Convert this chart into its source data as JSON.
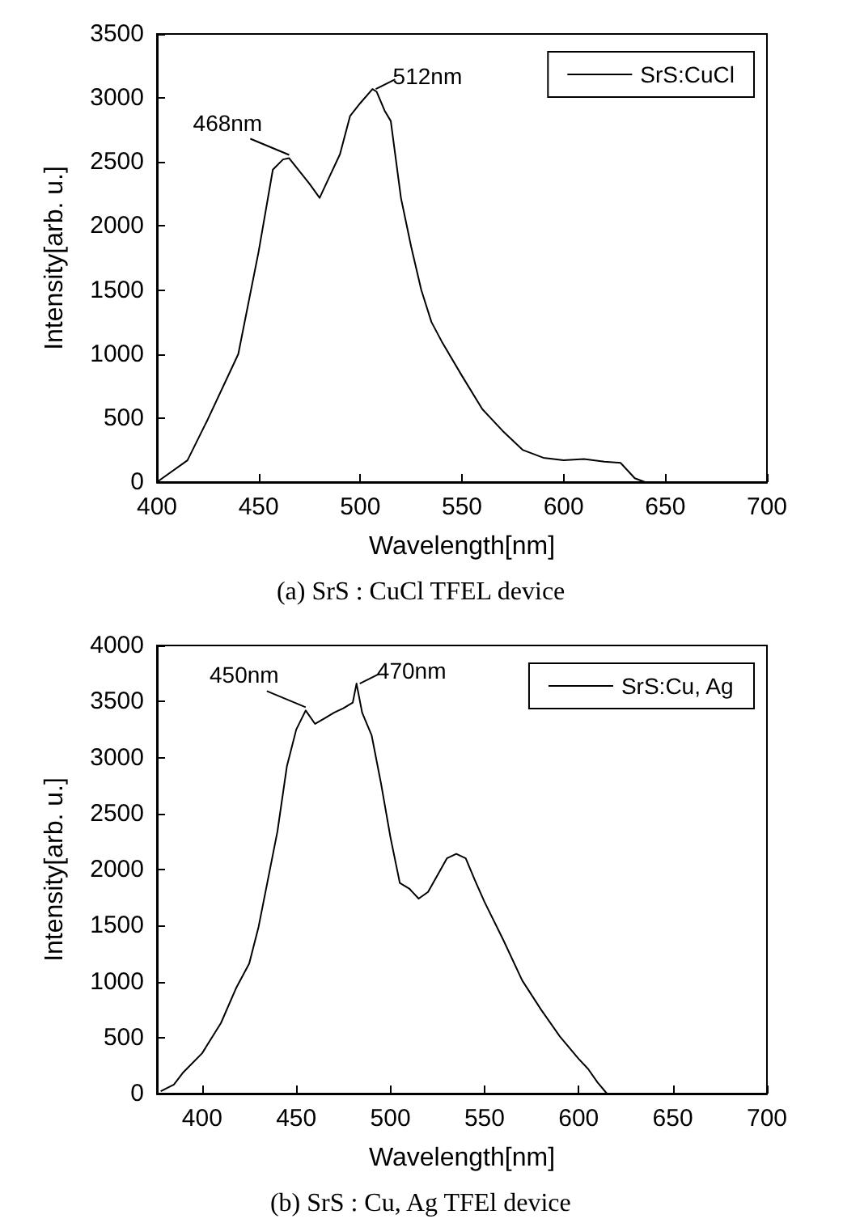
{
  "chart_data": [
    {
      "type": "line",
      "xlabel": "Wavelength[nm]",
      "ylabel": "Intensity[arb. u.]",
      "xlim": [
        400,
        700
      ],
      "xticks": [
        400,
        450,
        500,
        550,
        600,
        650,
        700
      ],
      "ylim": [
        0,
        3500
      ],
      "yticks": [
        0,
        500,
        1000,
        1500,
        2000,
        2500,
        3000,
        3500
      ],
      "grid": false,
      "legend": "top right",
      "marker": "none",
      "line_style": "solid",
      "series": [
        {
          "name": "SrS:CuCl",
          "color": "#000000",
          "x": [
            400,
            415,
            425,
            440,
            450,
            457,
            462,
            465,
            475,
            480,
            485,
            490,
            495,
            500,
            506,
            508,
            512,
            515,
            520,
            525,
            530,
            535,
            540,
            550,
            560,
            570,
            580,
            590,
            600,
            610,
            620,
            628,
            635,
            640,
            650,
            700
          ],
          "values": [
            0,
            170,
            490,
            1000,
            1800,
            2440,
            2520,
            2530,
            2330,
            2220,
            2390,
            2560,
            2860,
            2960,
            3070,
            3050,
            2900,
            2820,
            2220,
            1840,
            1500,
            1250,
            1100,
            830,
            570,
            400,
            250,
            190,
            170,
            180,
            160,
            150,
            30,
            0,
            0,
            0
          ]
        }
      ],
      "annotations": [
        {
          "text": "468nm",
          "x": 465,
          "y": 2530
        },
        {
          "text": "512nm",
          "x": 506,
          "y": 3070
        },
        "(a) SrS : CuCl TFEL device"
      ]
    },
    {
      "type": "line",
      "xlabel": "Wavelength[nm]",
      "ylabel": "Intensity[arb. u.]",
      "xlim": [
        376,
        700
      ],
      "xticks": [
        400,
        450,
        500,
        550,
        600,
        650,
        700
      ],
      "ylim": [
        0,
        4000
      ],
      "yticks": [
        0,
        500,
        1000,
        1500,
        2000,
        2500,
        3000,
        3500,
        4000
      ],
      "grid": false,
      "legend": "top right",
      "marker": "none",
      "line_style": "solid",
      "series": [
        {
          "name": "SrS:Cu, Ag",
          "color": "#000000",
          "x": [
            378,
            385,
            390,
            400,
            410,
            418,
            425,
            430,
            440,
            445,
            450,
            455,
            460,
            465,
            470,
            475,
            480,
            482,
            485,
            490,
            495,
            500,
            505,
            510,
            515,
            520,
            525,
            530,
            535,
            540,
            545,
            550,
            560,
            570,
            580,
            590,
            600,
            605,
            610,
            615,
            700
          ],
          "values": [
            20,
            80,
            190,
            360,
            630,
            940,
            1160,
            1490,
            2340,
            2920,
            3250,
            3420,
            3300,
            3350,
            3400,
            3440,
            3490,
            3660,
            3400,
            3200,
            2770,
            2290,
            1880,
            1830,
            1740,
            1800,
            1950,
            2100,
            2140,
            2100,
            1900,
            1710,
            1370,
            1010,
            750,
            510,
            310,
            220,
            100,
            0,
            0
          ]
        }
      ],
      "annotations": [
        {
          "text": "450nm",
          "x": 455,
          "y": 3420
        },
        {
          "text": "470nm",
          "x": 482,
          "y": 3660
        },
        "(b) SrS : Cu, Ag TFEl device"
      ]
    }
  ]
}
